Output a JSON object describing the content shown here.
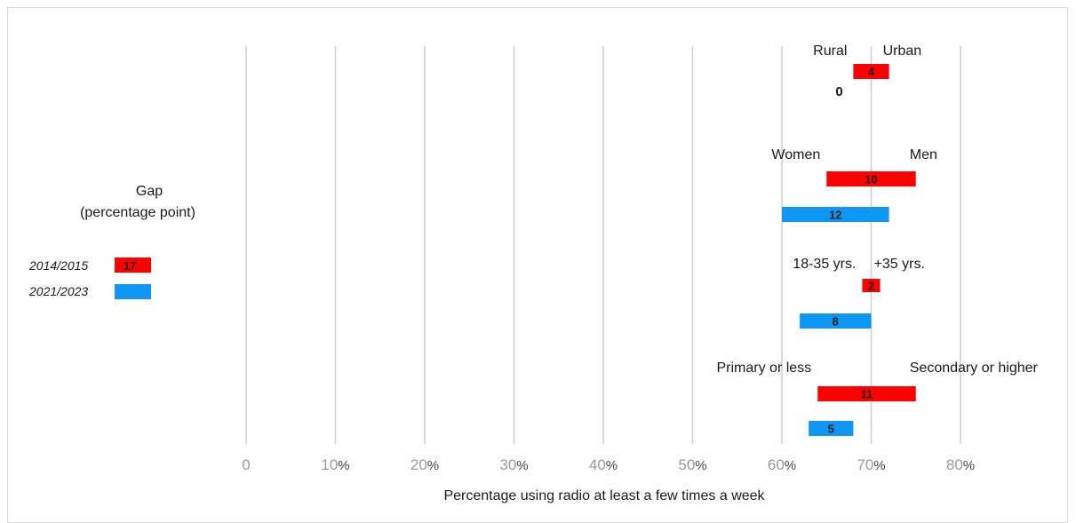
{
  "chart_data": {
    "type": "bar",
    "orientation": "horizontal-range",
    "xlabel": "Percentage using radio at least a few times a week",
    "xlim": [
      0,
      80
    ],
    "xticks": [
      0,
      10,
      20,
      30,
      40,
      50,
      60,
      70,
      80
    ],
    "grid": "vertical",
    "legend": {
      "title_line1": "Gap",
      "title_line2": "(percentage point)",
      "placement": "left",
      "items": [
        {
          "label": "2014/2015",
          "color": "#ff0000",
          "value_label": "17"
        },
        {
          "label": "2021/2023",
          "color": "#0d96f2",
          "value_label": ""
        }
      ]
    },
    "groups": [
      {
        "left_label": "Rural",
        "right_label": "Urban",
        "bars": [
          {
            "period": "2014/2015",
            "start": 68,
            "end": 72,
            "gap_label": "4"
          },
          {
            "period": "2021/2023",
            "start": 70,
            "end": 70,
            "gap_label": "0"
          }
        ]
      },
      {
        "left_label": "Women",
        "right_label": "Men",
        "bars": [
          {
            "period": "2014/2015",
            "start": 65,
            "end": 75,
            "gap_label": "10"
          },
          {
            "period": "2021/2023",
            "start": 60,
            "end": 72,
            "gap_label": "12"
          }
        ]
      },
      {
        "left_label": "18-35 yrs.",
        "right_label": "+35 yrs.",
        "bars": [
          {
            "period": "2014/2015",
            "start": 69,
            "end": 71,
            "gap_label": "2"
          },
          {
            "period": "2021/2023",
            "start": 62,
            "end": 70,
            "gap_label": "8"
          }
        ]
      },
      {
        "left_label": "Primary or less",
        "right_label": "Secondary or higher",
        "bars": [
          {
            "period": "2014/2015",
            "start": 64,
            "end": 75,
            "gap_label": "11"
          },
          {
            "period": "2021/2023",
            "start": 63,
            "end": 68,
            "gap_label": "5"
          }
        ]
      }
    ]
  }
}
